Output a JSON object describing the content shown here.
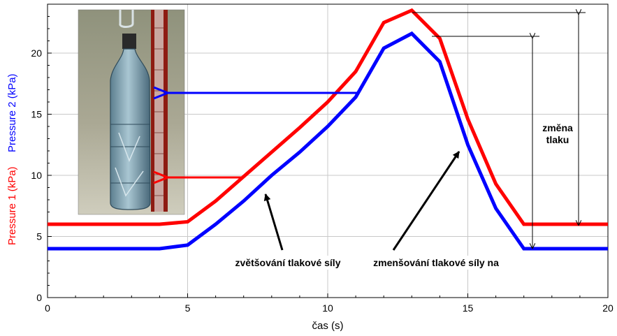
{
  "chart_data": {
    "type": "line",
    "xlabel": "čas (s)",
    "ylabel_series1": "Pressure 1 (kPa)",
    "ylabel_series2": "Pressure 2 (kPa)",
    "xlim": [
      0,
      20
    ],
    "ylim": [
      0,
      24
    ],
    "x_ticks": [
      "0",
      "5",
      "10",
      "15",
      "20"
    ],
    "y_ticks": [
      "0",
      "5",
      "10",
      "15",
      "20"
    ],
    "grid": true,
    "series": [
      {
        "name": "Pressure 1 (kPa)",
        "color": "#ff0000",
        "x": [
          0,
          4,
          5,
          6,
          7,
          8,
          9,
          10,
          11,
          12,
          13,
          14,
          15,
          16,
          17,
          20
        ],
        "y": [
          6.0,
          6.0,
          6.2,
          7.9,
          9.9,
          11.9,
          13.9,
          16.0,
          18.5,
          22.5,
          23.5,
          21.2,
          14.6,
          9.3,
          6.0,
          6.0
        ]
      },
      {
        "name": "Pressure 2 (kPa)",
        "color": "#0000ff",
        "x": [
          0,
          4,
          5,
          6,
          7,
          8,
          9,
          10,
          11,
          12,
          13,
          14,
          15,
          16,
          17,
          20
        ],
        "y": [
          4.0,
          4.0,
          4.3,
          6.0,
          7.9,
          10.0,
          11.9,
          14.0,
          16.4,
          20.4,
          21.6,
          19.3,
          12.5,
          7.3,
          4.0,
          4.0
        ]
      }
    ],
    "annotations": {
      "increase_label": "zvětšování tlakové síly",
      "decrease_label": "zmenšování tlakové síly na",
      "change_label_line1": "změna",
      "change_label_line2": "tlaku"
    }
  }
}
